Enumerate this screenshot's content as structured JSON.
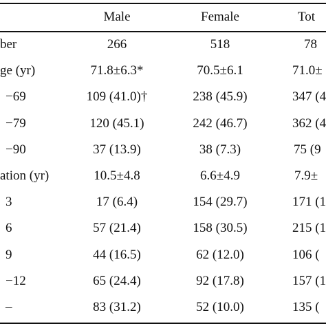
{
  "table": {
    "columns": [
      "Male",
      "Female",
      "Tot"
    ],
    "rows": [
      [
        "ber",
        "266",
        "518",
        "78"
      ],
      [
        "ge (yr)",
        "71.8±6.3*",
        "70.5±6.1",
        "71.0±"
      ],
      [
        "−69",
        "109 (41.0)†",
        "238 (45.9)",
        "347 (4"
      ],
      [
        "−79",
        "120 (45.1)",
        "242 (46.7)",
        "362 (4"
      ],
      [
        "−90",
        "37 (13.9)",
        "38 (7.3)",
        "75 (9"
      ],
      [
        "ation (yr)",
        "10.5±4.8",
        "6.6±4.9",
        "7.9±"
      ],
      [
        "3",
        "17 (6.4)",
        "154 (29.7)",
        "171 (1"
      ],
      [
        "6",
        "57 (21.4)",
        "158 (30.5)",
        "215 (1"
      ],
      [
        "9",
        "44 (16.5)",
        "62 (12.0)",
        "106 ("
      ],
      [
        "−12",
        "65 (24.4)",
        "92 (17.8)",
        "157 (1"
      ],
      [
        "–",
        "83 (31.2)",
        "52 (10.0)",
        "135 ("
      ]
    ]
  }
}
